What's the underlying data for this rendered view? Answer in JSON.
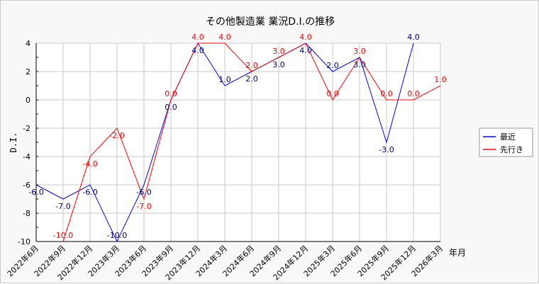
{
  "chart_data": {
    "type": "line",
    "title": "その他製造業 業況D.I.の推移",
    "xlabel": "年月",
    "ylabel": "D.I.",
    "ylim": [
      -10,
      4
    ],
    "yticks": [
      -10,
      -8,
      -6,
      -4,
      -2,
      0,
      2,
      4
    ],
    "categories": [
      "2022年6月",
      "2022年9月",
      "2022年12月",
      "2023年3月",
      "2023年6月",
      "2023年9月",
      "2023年12月",
      "2024年3月",
      "2024年6月",
      "2024年9月",
      "2024年12月",
      "2025年3月",
      "2025年6月",
      "2025年9月",
      "2025年12月",
      "2026年3月"
    ],
    "series": [
      {
        "name": "最近",
        "color": "#0000ff",
        "label_color": "#000080",
        "values": [
          -6,
          -7,
          -6,
          -10,
          -6,
          0,
          4,
          1,
          2,
          3,
          4,
          2,
          3,
          -3,
          4,
          null
        ]
      },
      {
        "name": "先行き",
        "color": "#ff0000",
        "label_color": "#ff0000",
        "values": [
          null,
          -10,
          -4,
          -2,
          -7,
          0,
          4,
          4,
          2,
          3,
          4,
          0,
          3,
          0,
          0,
          1
        ]
      }
    ],
    "grid": true,
    "legend": "right"
  }
}
